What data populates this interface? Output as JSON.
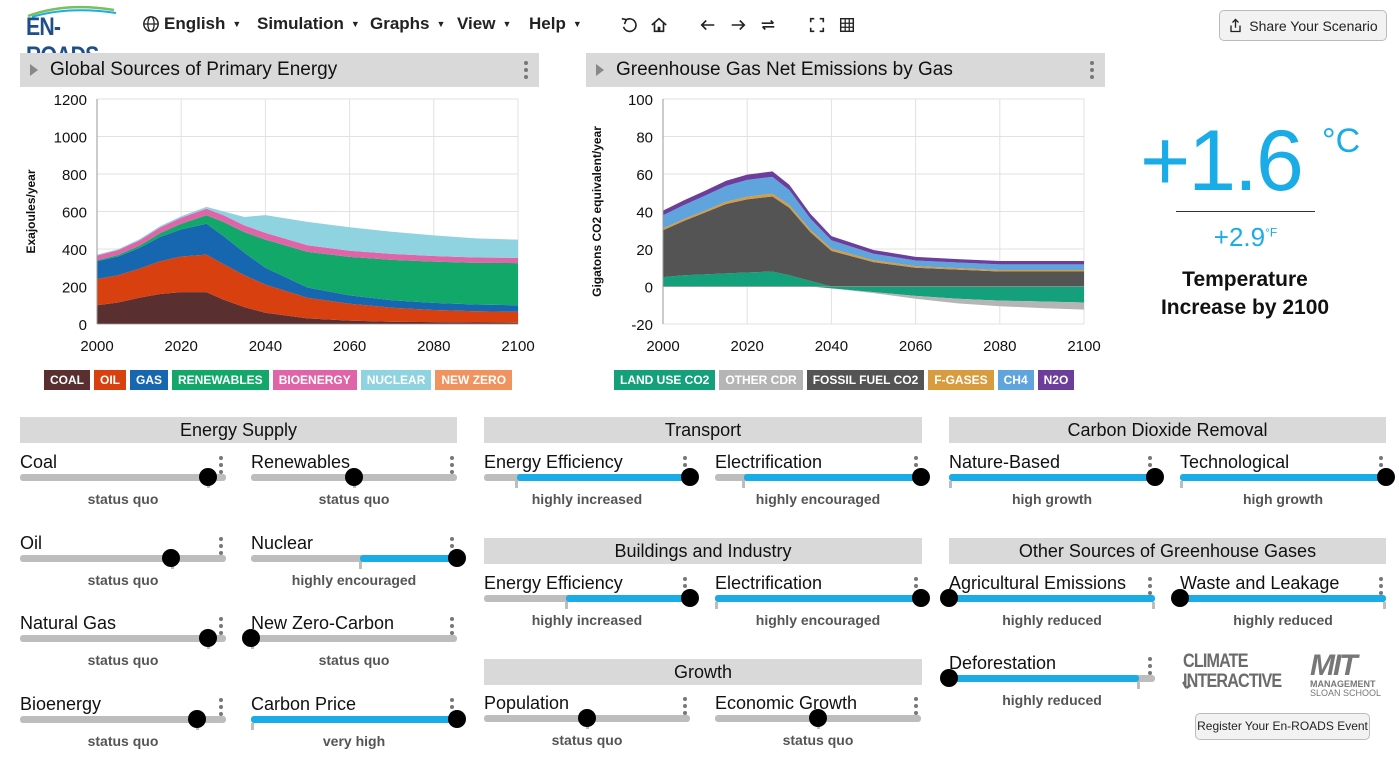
{
  "header": {
    "logo_text": "EN-ROADS",
    "menus": [
      "English",
      "Simulation",
      "Graphs",
      "View",
      "Help"
    ],
    "tools": [
      "undo-icon",
      "home-icon",
      "back-icon",
      "forward-icon",
      "compare-icon",
      "fullscreen-icon",
      "grid-icon"
    ],
    "share_label": "Share Your Scenario"
  },
  "graph_left": {
    "title": "Global Sources of Primary Energy",
    "chart_data": {
      "type": "area",
      "stacked": true,
      "title": "Global Sources of Primary Energy",
      "ylabel": "Exajoules/year",
      "x": [
        2000,
        2005,
        2010,
        2015,
        2020,
        2026,
        2030,
        2035,
        2040,
        2050,
        2060,
        2070,
        2080,
        2090,
        2100
      ],
      "yticks": [
        "0",
        "200",
        "400",
        "600",
        "800",
        "1000",
        "1200"
      ],
      "xticks": [
        "2000",
        "2020",
        "2040",
        "2060",
        "2080",
        "2100"
      ],
      "ylim": [
        0,
        1200
      ],
      "xlim": [
        2000,
        2100
      ],
      "series": [
        {
          "name": "COAL",
          "color": "#5a2f2f",
          "values": [
            100,
            115,
            140,
            160,
            170,
            170,
            130,
            90,
            60,
            30,
            18,
            12,
            10,
            8,
            7
          ]
        },
        {
          "name": "OIL",
          "color": "#d8400f",
          "values": [
            140,
            145,
            155,
            175,
            190,
            200,
            190,
            170,
            150,
            110,
            90,
            75,
            65,
            60,
            58
          ]
        },
        {
          "name": "GAS",
          "color": "#1666b0",
          "values": [
            95,
            100,
            110,
            130,
            145,
            165,
            150,
            120,
            90,
            55,
            45,
            40,
            38,
            36,
            35
          ]
        },
        {
          "name": "RENEWABLES",
          "color": "#12a86a",
          "values": [
            5,
            8,
            12,
            20,
            30,
            45,
            75,
            110,
            150,
            190,
            205,
            215,
            220,
            222,
            225
          ]
        },
        {
          "name": "BIOENERGY",
          "color": "#e064a8",
          "values": [
            25,
            26,
            28,
            30,
            32,
            35,
            36,
            36,
            36,
            35,
            33,
            32,
            30,
            29,
            28
          ]
        },
        {
          "name": "NUCLEAR",
          "color": "#8fd2e0",
          "values": [
            5,
            5,
            6,
            7,
            8,
            10,
            20,
            45,
            95,
            125,
            125,
            118,
            110,
            102,
            97
          ]
        },
        {
          "name": "NEW ZERO",
          "color": "#f0935e",
          "values": [
            0,
            0,
            0,
            0,
            0,
            0,
            0,
            0,
            0,
            0,
            0,
            0,
            0,
            0,
            0
          ]
        }
      ]
    }
  },
  "graph_right": {
    "title": "Greenhouse Gas Net Emissions by Gas",
    "chart_data": {
      "type": "area",
      "stacked": true,
      "title": "Greenhouse Gas Net Emissions by Gas",
      "ylabel": "Gigatons CO2 equivalent/year",
      "x": [
        2000,
        2005,
        2010,
        2015,
        2020,
        2026,
        2030,
        2035,
        2040,
        2050,
        2060,
        2070,
        2080,
        2090,
        2100
      ],
      "yticks": [
        "-20",
        "0",
        "20",
        "40",
        "60",
        "80",
        "100"
      ],
      "xticks": [
        "2000",
        "2020",
        "2040",
        "2060",
        "2080",
        "2100"
      ],
      "ylim": [
        -20,
        100
      ],
      "xlim": [
        2000,
        2100
      ],
      "positive_series": [
        {
          "name": "LAND USE CO2",
          "color": "#13a07b",
          "values": [
            5,
            6,
            6.5,
            7,
            7.5,
            8,
            6,
            3,
            0,
            0,
            0,
            0,
            0,
            0,
            0
          ]
        },
        {
          "name": "FOSSIL FUEL CO2",
          "color": "#545454",
          "values": [
            25,
            29,
            33,
            37,
            39,
            40,
            36,
            26,
            19,
            13,
            10,
            9,
            8,
            8,
            8
          ]
        },
        {
          "name": "F-GASES",
          "color": "#d89b3e",
          "values": [
            1,
            1,
            1,
            1.2,
            1.4,
            1.5,
            1.5,
            1.3,
            1.2,
            1,
            0.9,
            0.8,
            0.8,
            0.8,
            0.8
          ]
        },
        {
          "name": "CH4",
          "color": "#5fa4dc",
          "values": [
            7,
            7.5,
            8,
            8.5,
            9,
            9,
            8,
            6,
            4.5,
            3.5,
            3,
            3,
            3,
            3,
            3
          ]
        },
        {
          "name": "N2O",
          "color": "#6c3d9a",
          "values": [
            2.5,
            2.5,
            2.6,
            2.7,
            2.8,
            2.9,
            2.8,
            2.5,
            2.2,
            2,
            1.9,
            1.8,
            1.8,
            1.8,
            1.8
          ]
        }
      ],
      "negative_series": [
        {
          "name": "LAND USE CO2",
          "color": "#13a07b",
          "values": [
            0,
            0,
            0,
            0,
            0,
            0,
            0,
            0,
            -1,
            -3,
            -5,
            -6.5,
            -7.5,
            -8,
            -8.5
          ]
        },
        {
          "name": "OTHER CDR",
          "color": "#b5b5b5",
          "values": [
            0,
            0,
            0,
            0,
            0,
            0,
            0,
            0,
            0,
            -0.5,
            -1.5,
            -2.5,
            -3,
            -3.5,
            -3.8
          ]
        }
      ],
      "legend": [
        {
          "name": "LAND USE CO2",
          "color": "#13a07b"
        },
        {
          "name": "OTHER CDR",
          "color": "#b5b5b5"
        },
        {
          "name": "FOSSIL FUEL CO2",
          "color": "#545454"
        },
        {
          "name": "F-GASES",
          "color": "#d89b3e"
        },
        {
          "name": "CH4",
          "color": "#5fa4dc"
        },
        {
          "name": "N2O",
          "color": "#6c3d9a"
        }
      ]
    }
  },
  "temperature": {
    "celsius": "+1.6",
    "celsius_unit": "°C",
    "fahrenheit": "+2.9",
    "fahrenheit_unit": "°F",
    "label": "Temperature Increase by 2100"
  },
  "sections": {
    "energy_supply": "Energy Supply",
    "transport": "Transport",
    "buildings": "Buildings and Industry",
    "growth": "Growth",
    "cdr": "Carbon Dioxide Removal",
    "other_gases": "Other Sources of Greenhouse Gases"
  },
  "sliders": {
    "coal": {
      "label": "Coal",
      "status": "status quo",
      "value": 0.915
    },
    "renewables": {
      "label": "Renewables",
      "status": "status quo",
      "value": 0.5
    },
    "oil": {
      "label": "Oil",
      "status": "status quo",
      "value": 0.735
    },
    "nuclear": {
      "label": "Nuclear",
      "status": "highly encouraged",
      "value": 1.0
    },
    "natural_gas": {
      "label": "Natural Gas",
      "status": "status quo",
      "value": 0.915
    },
    "new_zero_carbon": {
      "label": "New Zero-Carbon",
      "status": "status quo",
      "value": 0.0
    },
    "bioenergy": {
      "label": "Bioenergy",
      "status": "status quo",
      "value": 0.86
    },
    "carbon_price": {
      "label": "Carbon Price",
      "status": "very high",
      "value": 1.0
    },
    "transport_efficiency": {
      "label": "Energy Efficiency",
      "status": "highly increased",
      "value": 1.0
    },
    "transport_electrification": {
      "label": "Electrification",
      "status": "highly encouraged",
      "value": 1.0
    },
    "buildings_efficiency": {
      "label": "Energy Efficiency",
      "status": "highly increased",
      "value": 1.0
    },
    "buildings_electrification": {
      "label": "Electrification",
      "status": "highly encouraged",
      "value": 1.0
    },
    "population": {
      "label": "Population",
      "status": "status quo",
      "value": 0.5
    },
    "economic_growth": {
      "label": "Economic Growth",
      "status": "status quo",
      "value": 0.5
    },
    "nature_based": {
      "label": "Nature-Based",
      "status": "high growth",
      "value": 1.0
    },
    "technological": {
      "label": "Technological",
      "status": "high growth",
      "value": 1.0
    },
    "agricultural": {
      "label": "Agricultural Emissions",
      "status": "highly reduced",
      "value": 0.0
    },
    "waste_leakage": {
      "label": "Waste and Leakage",
      "status": "highly reduced",
      "value": 0.0
    },
    "deforestation": {
      "label": "Deforestation",
      "status": "highly reduced",
      "value": 0.0
    }
  },
  "footer": {
    "ci_logo": "CLIMATE INTERACTIVE",
    "mit_logo_big": "MIT",
    "mit_logo_line1": "MANAGEMENT",
    "mit_logo_line2": "SLOAN SCHOOL",
    "register_label": "Register Your En-ROADS Event"
  },
  "colors": {
    "accent": "#1aace6",
    "track": "#bdbdbd",
    "panel_header": "#d9d9d9"
  }
}
